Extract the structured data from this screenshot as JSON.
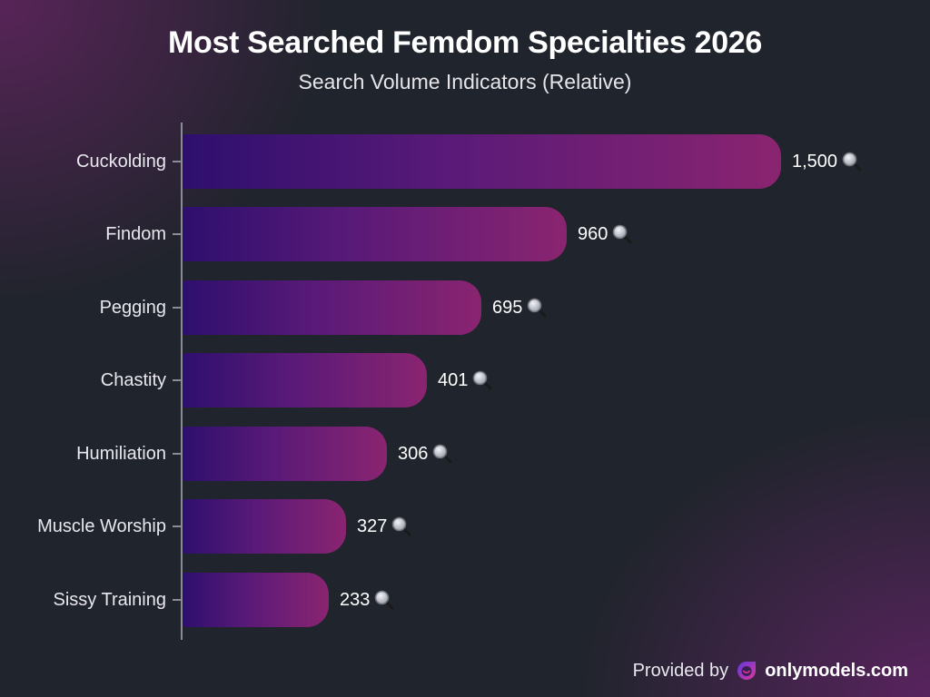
{
  "header": {
    "title": "Most Searched Femdom Specialties 2026",
    "subtitle": "Search Volume Indicators (Relative)"
  },
  "footer": {
    "provided_by": "Provided by",
    "brand": "onlymodels.com",
    "logo_icon": "onlymodels-logo-icon"
  },
  "colors": {
    "background": "#20242c",
    "bar_gradient_start": "#2e0f6e",
    "bar_gradient_end": "#8a2470",
    "text": "#ffffff",
    "axis": "#8a8d96"
  },
  "value_icon": "magnifying-glass-icon",
  "rows": [
    {
      "label": "Cuckolding",
      "value": "1,500"
    },
    {
      "label": "Findom",
      "value": "960"
    },
    {
      "label": "Pegging",
      "value": "695"
    },
    {
      "label": "Chastity",
      "value": "401"
    },
    {
      "label": "Humiliation",
      "value": "306"
    },
    {
      "label": "Muscle Worship",
      "value": "327"
    },
    {
      "label": "Sissy Training",
      "value": "233"
    }
  ],
  "chart_data": {
    "type": "bar",
    "orientation": "horizontal",
    "title": "Most Searched Femdom Specialties 2026",
    "subtitle": "Search Volume Indicators (Relative)",
    "categories": [
      "Cuckolding",
      "Findom",
      "Pegging",
      "Chastity",
      "Humiliation",
      "Muscle Worship",
      "Sissy Training"
    ],
    "values": [
      1500,
      960,
      695,
      401,
      306,
      327,
      233
    ],
    "value_labels": [
      "1,500",
      "960",
      "695",
      "401",
      "306",
      "327",
      "233"
    ],
    "xlabel": "",
    "ylabel": "",
    "grid": false,
    "legend": null,
    "annotations": [
      "Provided by onlymodels.com"
    ]
  }
}
